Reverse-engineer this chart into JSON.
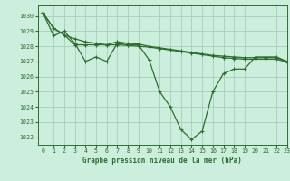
{
  "title": "Graphe pression niveau de la mer (hPa)",
  "bg_color": "#cceedd",
  "grid_color": "#aaccbb",
  "line_color": "#2d6e2d",
  "xlim": [
    -0.5,
    23
  ],
  "ylim": [
    1021.5,
    1030.7
  ],
  "yticks": [
    1022,
    1023,
    1024,
    1025,
    1026,
    1027,
    1028,
    1029,
    1030
  ],
  "xticks": [
    0,
    1,
    2,
    3,
    4,
    5,
    6,
    7,
    8,
    9,
    10,
    11,
    12,
    13,
    14,
    15,
    16,
    17,
    18,
    19,
    20,
    21,
    22,
    23
  ],
  "series": [
    [
      1030.2,
      1028.7,
      1029.0,
      1028.2,
      1027.0,
      1027.3,
      1027.0,
      1028.2,
      1028.1,
      1028.1,
      1027.1,
      1025.0,
      1024.0,
      1022.5,
      1021.85,
      1022.4,
      1025.0,
      1026.2,
      1026.5,
      1026.5,
      1027.3,
      1027.3,
      1027.3,
      1027.0
    ],
    [
      1030.2,
      1029.2,
      1028.75,
      1028.5,
      1028.3,
      1028.2,
      1028.1,
      1028.3,
      1028.2,
      1028.15,
      1028.0,
      1027.9,
      1027.8,
      1027.7,
      1027.6,
      1027.5,
      1027.4,
      1027.35,
      1027.3,
      1027.25,
      1027.25,
      1027.25,
      1027.25,
      1027.0
    ],
    [
      1030.2,
      1029.2,
      1028.75,
      1028.1,
      1028.1,
      1028.1,
      1028.1,
      1028.1,
      1028.05,
      1028.0,
      1027.95,
      1027.85,
      1027.75,
      1027.65,
      1027.55,
      1027.45,
      1027.35,
      1027.25,
      1027.2,
      1027.15,
      1027.15,
      1027.15,
      1027.15,
      1026.95
    ]
  ],
  "title_fontsize": 5.5,
  "tick_fontsize": 4.8,
  "linewidth": 0.9,
  "markersize": 2.8
}
